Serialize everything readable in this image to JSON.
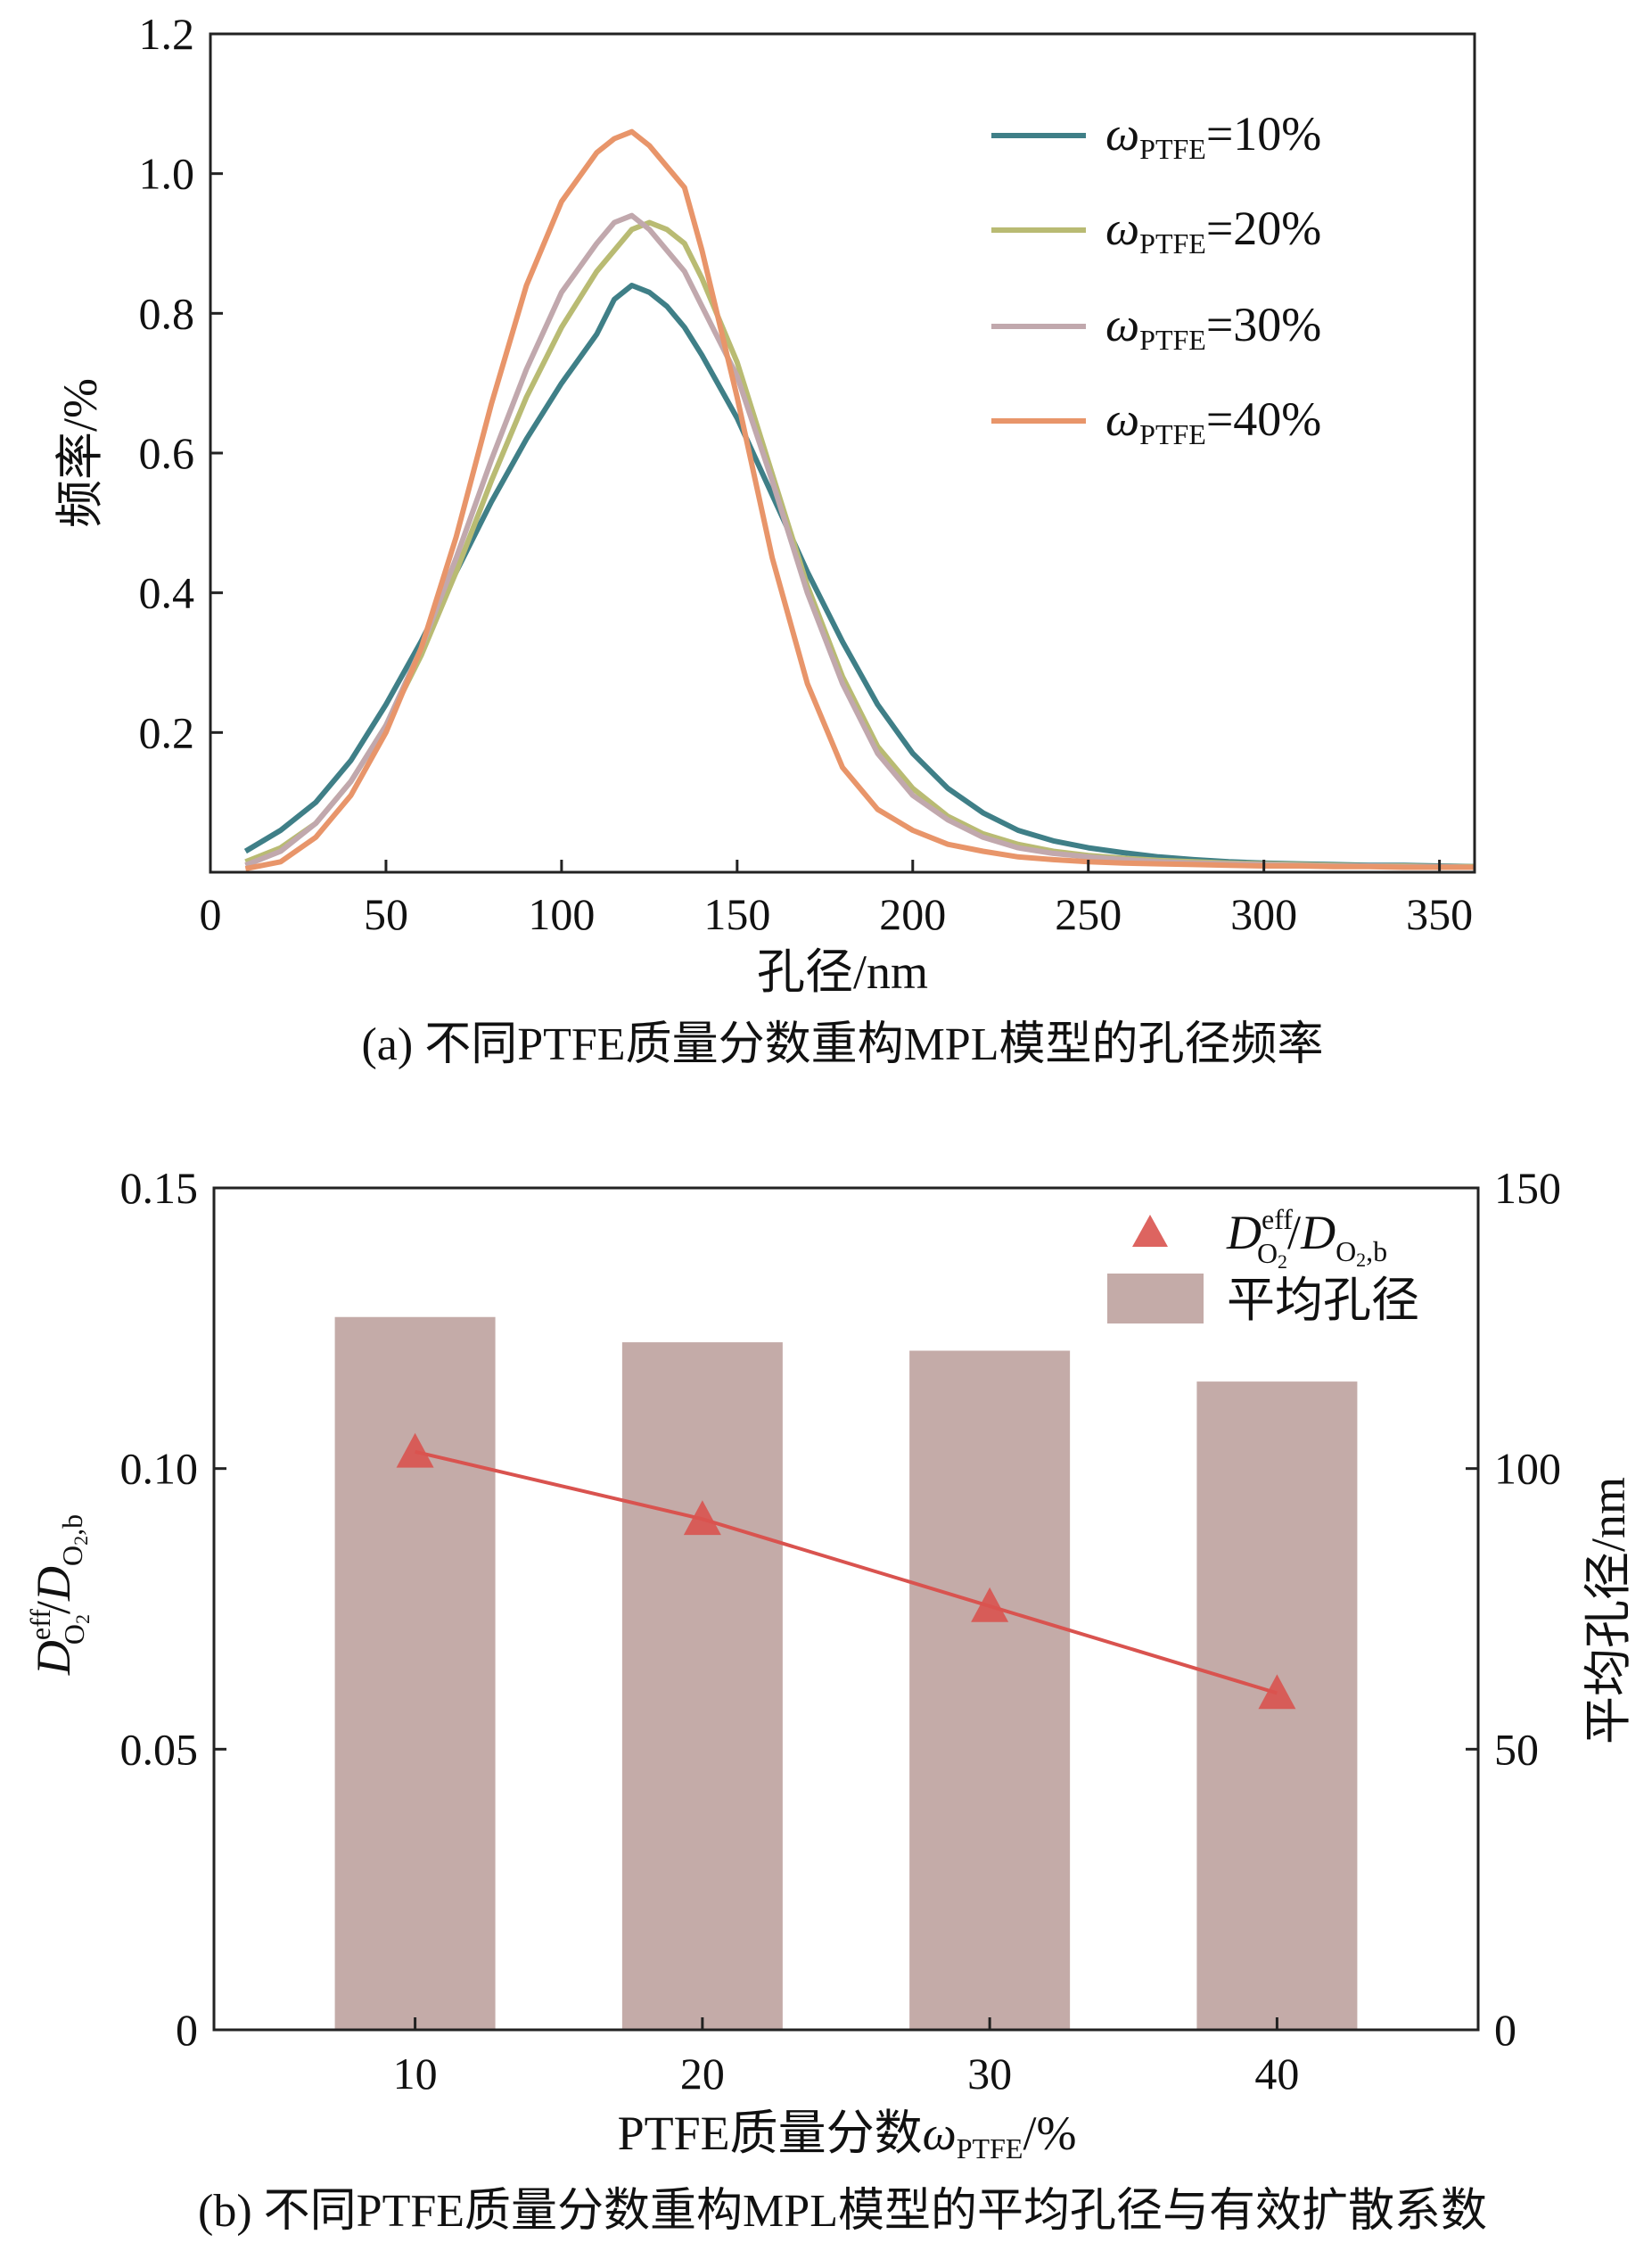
{
  "figure": {
    "panel_a": {
      "caption": "(a) 不同PTFE质量分数重构MPL模型的孔径频率",
      "xlabel": "孔径/nm",
      "ylabel": "频率/%",
      "legend": [
        {
          "sym": "ω",
          "sub": "PTFE",
          "val": "=10%"
        },
        {
          "sym": "ω",
          "sub": "PTFE",
          "val": "=20%"
        },
        {
          "sym": "ω",
          "sub": "PTFE",
          "val": "=30%"
        },
        {
          "sym": "ω",
          "sub": "PTFE",
          "val": "=40%"
        }
      ]
    },
    "panel_b": {
      "caption": "(b) 不同PTFE质量分数重构MPL模型的平均孔径与有效扩散系数",
      "xlabel_prefix": "PTFE质量分数",
      "xlabel_sym": "ω",
      "xlabel_sub": "PTFE",
      "xlabel_suffix": "/%",
      "ylabel_right": "平均孔径/nm",
      "ylabel_left_D": "D",
      "ylabel_left_sup": "eff",
      "ylabel_left_sub1": "O",
      "ylabel_left_sub1b": "2",
      "ylabel_left_sub2": "O",
      "ylabel_left_sub2b": "2",
      "ylabel_left_sub2c": ",b",
      "legend_line_D": "D",
      "legend_line_sup": "eff",
      "legend_line_sub1": "O",
      "legend_line_sub1b": "2",
      "legend_line_sub2": "O",
      "legend_line_sub2b": "2",
      "legend_line_sub2c": ",b",
      "legend_bar": "平均孔径"
    }
  },
  "chart_data": [
    {
      "type": "line",
      "xlabel": "孔径/nm",
      "ylabel": "频率/%",
      "xlim": [
        0,
        360
      ],
      "ylim": [
        0,
        1.2
      ],
      "x_ticks": [
        "0",
        "50",
        "100",
        "150",
        "200",
        "250",
        "300",
        "350"
      ],
      "x_tick_values": [
        0,
        50,
        100,
        150,
        200,
        250,
        300,
        350
      ],
      "y_ticks": [
        "0.2",
        "0.4",
        "0.6",
        "0.8",
        "1.0",
        "1.2"
      ],
      "y_tick_values": [
        0.2,
        0.4,
        0.6,
        0.8,
        1.0,
        1.2
      ],
      "grid": false,
      "legend_position": "top-right",
      "x": [
        10,
        20,
        30,
        40,
        50,
        60,
        70,
        80,
        90,
        100,
        110,
        115,
        120,
        125,
        130,
        135,
        140,
        150,
        160,
        170,
        180,
        190,
        200,
        210,
        220,
        230,
        240,
        250,
        260,
        270,
        280,
        290,
        300,
        310,
        320,
        330,
        340,
        350,
        360
      ],
      "series": [
        {
          "name": "ωPTFE=10%",
          "color": "#3f7f87",
          "values": [
            0.03,
            0.06,
            0.1,
            0.16,
            0.24,
            0.33,
            0.43,
            0.53,
            0.62,
            0.7,
            0.77,
            0.82,
            0.84,
            0.83,
            0.81,
            0.78,
            0.74,
            0.65,
            0.54,
            0.43,
            0.33,
            0.24,
            0.17,
            0.12,
            0.085,
            0.06,
            0.045,
            0.035,
            0.028,
            0.022,
            0.018,
            0.015,
            0.013,
            0.012,
            0.011,
            0.01,
            0.01,
            0.009,
            0.008
          ]
        },
        {
          "name": "ωPTFE=20%",
          "color": "#b9bb73",
          "values": [
            0.015,
            0.035,
            0.07,
            0.13,
            0.21,
            0.31,
            0.43,
            0.56,
            0.68,
            0.78,
            0.86,
            0.89,
            0.92,
            0.93,
            0.92,
            0.9,
            0.85,
            0.73,
            0.57,
            0.41,
            0.28,
            0.18,
            0.12,
            0.08,
            0.055,
            0.04,
            0.03,
            0.024,
            0.02,
            0.017,
            0.015,
            0.013,
            0.012,
            0.011,
            0.01,
            0.009,
            0.009,
            0.008,
            0.008
          ]
        },
        {
          "name": "ωPTFE=30%",
          "color": "#c1a8ad",
          "values": [
            0.01,
            0.03,
            0.07,
            0.13,
            0.21,
            0.32,
            0.45,
            0.59,
            0.72,
            0.83,
            0.9,
            0.93,
            0.94,
            0.92,
            0.89,
            0.86,
            0.81,
            0.71,
            0.56,
            0.4,
            0.27,
            0.17,
            0.11,
            0.075,
            0.05,
            0.035,
            0.027,
            0.022,
            0.018,
            0.015,
            0.013,
            0.012,
            0.011,
            0.01,
            0.009,
            0.009,
            0.008,
            0.008,
            0.007
          ]
        },
        {
          "name": "ωPTFE=40%",
          "color": "#e8956a",
          "values": [
            0.005,
            0.015,
            0.05,
            0.11,
            0.2,
            0.32,
            0.48,
            0.67,
            0.84,
            0.96,
            1.03,
            1.05,
            1.06,
            1.04,
            1.01,
            0.98,
            0.89,
            0.68,
            0.45,
            0.27,
            0.15,
            0.09,
            0.06,
            0.04,
            0.03,
            0.022,
            0.018,
            0.015,
            0.013,
            0.012,
            0.011,
            0.01,
            0.009,
            0.009,
            0.008,
            0.008,
            0.007,
            0.007,
            0.007
          ]
        }
      ]
    },
    {
      "type": "bar",
      "xlabel": "PTFE质量分数ωPTFE/%",
      "categories": [
        "10",
        "20",
        "30",
        "40"
      ],
      "x_values": [
        10,
        20,
        30,
        40
      ],
      "grid": false,
      "legend_position": "top-right",
      "series": [
        {
          "name": "平均孔径",
          "type": "bar",
          "axis": "right",
          "color": "#c4aba8",
          "values": [
            127,
            122.5,
            121,
            115.5
          ]
        },
        {
          "name": "D_O2^eff/D_O2,b",
          "type": "line",
          "axis": "left",
          "color": "#d9534f",
          "values": [
            0.103,
            0.091,
            0.0755,
            0.06
          ]
        }
      ],
      "ylim_left": [
        0,
        0.15
      ],
      "y_ticks_left": [
        "0",
        "0.05",
        "0.10",
        "0.15"
      ],
      "y_tick_values_left": [
        0,
        0.05,
        0.1,
        0.15
      ],
      "ylim_right": [
        0,
        150
      ],
      "y_ticks_right": [
        "0",
        "50",
        "100",
        "150"
      ],
      "y_tick_values_right": [
        0,
        50,
        100,
        150
      ],
      "ylabel_right": "平均孔径/nm",
      "ylabel_left": "D_O2^eff/D_O2,b"
    }
  ]
}
